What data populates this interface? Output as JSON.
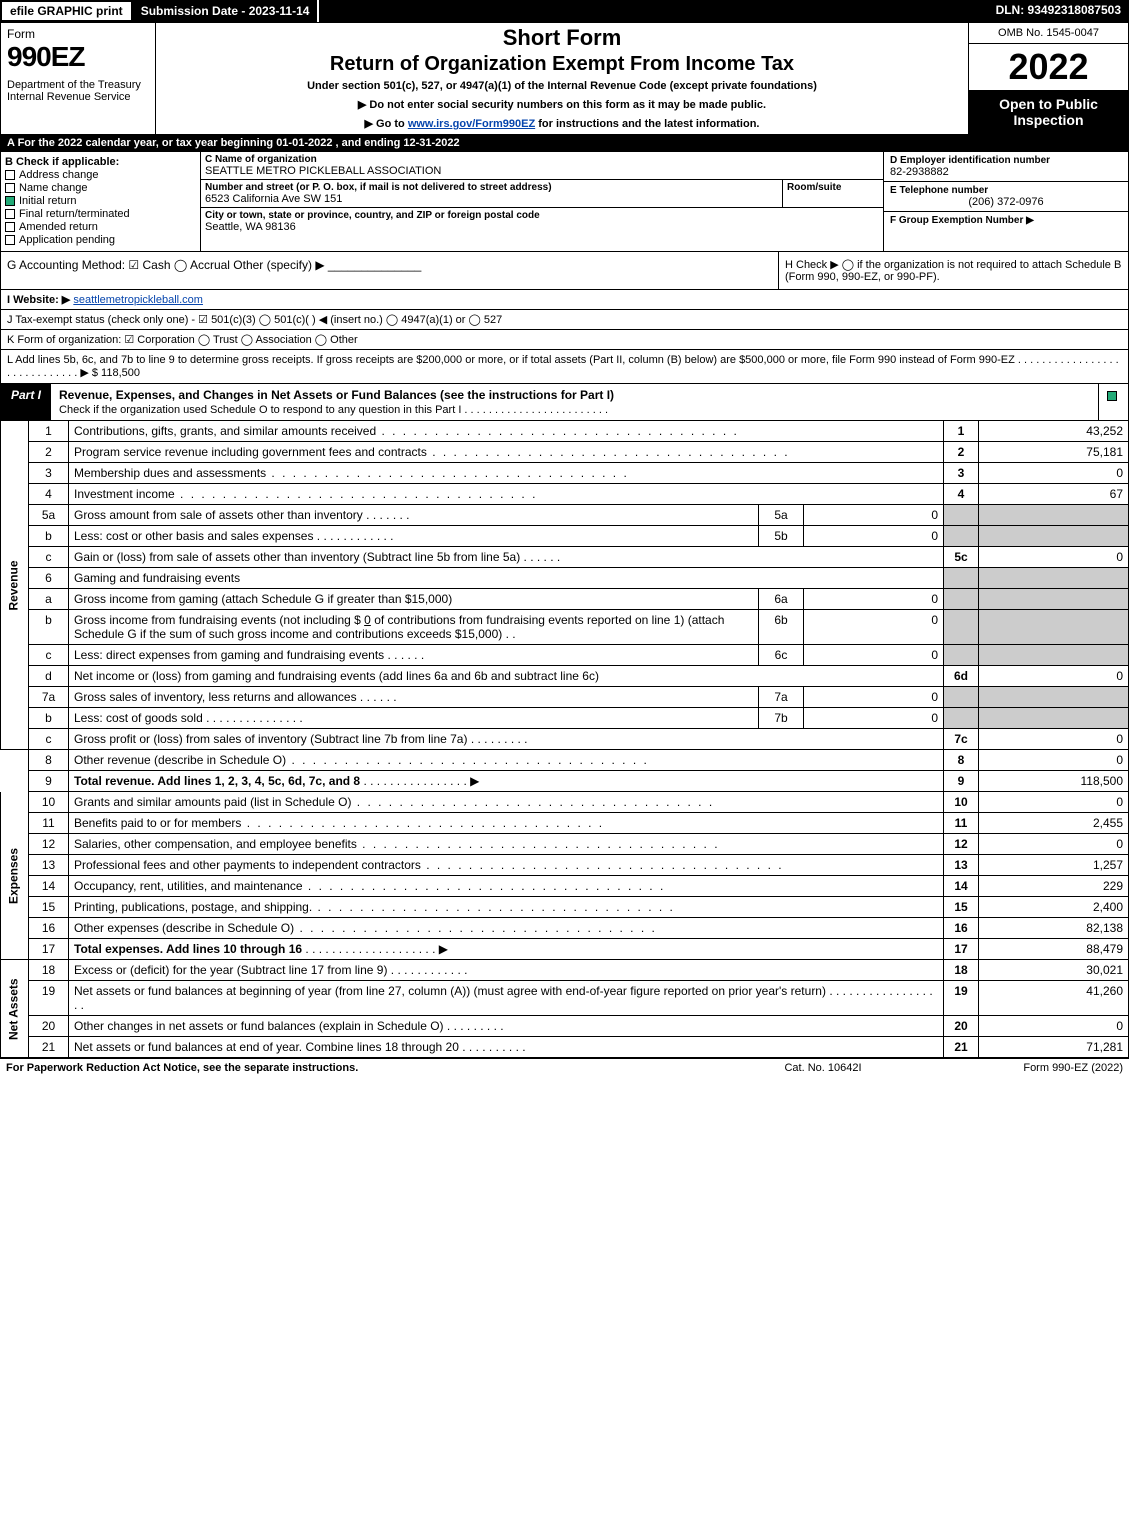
{
  "topbar": {
    "efile": "efile GRAPHIC print",
    "submission": "Submission Date - 2023-11-14",
    "dln": "DLN: 93492318087503"
  },
  "header": {
    "form_word": "Form",
    "form_number": "990EZ",
    "dept1": "Department of the Treasury",
    "dept2": "Internal Revenue Service",
    "title1": "Short Form",
    "title2": "Return of Organization Exempt From Income Tax",
    "subtitle": "Under section 501(c), 527, or 4947(a)(1) of the Internal Revenue Code (except private foundations)",
    "note1": "▶ Do not enter social security numbers on this form as it may be made public.",
    "note2_pre": "▶ Go to ",
    "note2_link": "www.irs.gov/Form990EZ",
    "note2_post": " for instructions and the latest information.",
    "omb": "OMB No. 1545-0047",
    "year": "2022",
    "open": "Open to Public Inspection"
  },
  "row_a": "A  For the 2022 calendar year, or tax year beginning 01-01-2022 , and ending 12-31-2022",
  "section_b": {
    "b_label": "B  Check if applicable:",
    "checks": [
      {
        "label": "Address change",
        "checked": false
      },
      {
        "label": "Name change",
        "checked": false
      },
      {
        "label": "Initial return",
        "checked": true
      },
      {
        "label": "Final return/terminated",
        "checked": false
      },
      {
        "label": "Amended return",
        "checked": false
      },
      {
        "label": "Application pending",
        "checked": false
      }
    ],
    "c_name_label": "C Name of organization",
    "c_name": "SEATTLE METRO PICKLEBALL ASSOCIATION",
    "c_street_label": "Number and street (or P. O. box, if mail is not delivered to street address)",
    "c_street": "6523 California Ave SW 151",
    "c_room_label": "Room/suite",
    "c_city_label": "City or town, state or province, country, and ZIP or foreign postal code",
    "c_city": "Seattle, WA  98136",
    "d_label": "D Employer identification number",
    "d_val": "82-2938882",
    "e_label": "E Telephone number",
    "e_val": "(206) 372-0976",
    "f_label": "F Group Exemption Number  ▶",
    "f_val": ""
  },
  "row_g": {
    "g_text": "G Accounting Method:   ☑ Cash  ◯ Accrual   Other (specify) ▶ ______________",
    "h_text": "H  Check ▶  ◯  if the organization is not required to attach Schedule B (Form 990, 990-EZ, or 990-PF)."
  },
  "row_i": {
    "label": "I Website: ▶",
    "link": "seattlemetropickleball.com"
  },
  "row_j": "J Tax-exempt status (check only one) - ☑ 501(c)(3) ◯ 501(c)( ) ◀ (insert no.) ◯ 4947(a)(1) or ◯ 527",
  "row_k": "K Form of organization:   ☑ Corporation   ◯ Trust   ◯ Association   ◯ Other",
  "row_l": {
    "text": "L Add lines 5b, 6c, and 7b to line 9 to determine gross receipts. If gross receipts are $200,000 or more, or if total assets (Part II, column (B) below) are $500,000 or more, file Form 990 instead of Form 990-EZ . . . . . . . . . . . . . . . . . . . . . . . . . . . . . ▶ $",
    "val": "118,500"
  },
  "part1": {
    "tag": "Part I",
    "title": "Revenue, Expenses, and Changes in Net Assets or Fund Balances (see the instructions for Part I)",
    "sub": "Check if the organization used Schedule O to respond to any question in this Part I . . . . . . . . . . . . . . . . . . . . . . . ."
  },
  "side": {
    "revenue": "Revenue",
    "expenses": "Expenses",
    "netassets": "Net Assets"
  },
  "lines": {
    "l1": {
      "n": "1",
      "d": "Contributions, gifts, grants, and similar amounts received",
      "r": "1",
      "v": "43,252"
    },
    "l2": {
      "n": "2",
      "d": "Program service revenue including government fees and contracts",
      "r": "2",
      "v": "75,181"
    },
    "l3": {
      "n": "3",
      "d": "Membership dues and assessments",
      "r": "3",
      "v": "0"
    },
    "l4": {
      "n": "4",
      "d": "Investment income",
      "r": "4",
      "v": "67"
    },
    "l5a": {
      "n": "5a",
      "d": "Gross amount from sale of assets other than inventory",
      "sn": "5a",
      "sv": "0"
    },
    "l5b": {
      "n": "b",
      "d": "Less: cost or other basis and sales expenses",
      "sn": "5b",
      "sv": "0"
    },
    "l5c": {
      "n": "c",
      "d": "Gain or (loss) from sale of assets other than inventory (Subtract line 5b from line 5a)",
      "r": "5c",
      "v": "0"
    },
    "l6": {
      "n": "6",
      "d": "Gaming and fundraising events"
    },
    "l6a": {
      "n": "a",
      "d": "Gross income from gaming (attach Schedule G if greater than $15,000)",
      "sn": "6a",
      "sv": "0"
    },
    "l6b": {
      "n": "b",
      "d1": "Gross income from fundraising events (not including $",
      "d1v": "0",
      "d2": " of contributions from fundraising events reported on line 1) (attach Schedule G if the sum of such gross income and contributions exceeds $15,000)",
      "sn": "6b",
      "sv": "0"
    },
    "l6c": {
      "n": "c",
      "d": "Less: direct expenses from gaming and fundraising events",
      "sn": "6c",
      "sv": "0"
    },
    "l6d": {
      "n": "d",
      "d": "Net income or (loss) from gaming and fundraising events (add lines 6a and 6b and subtract line 6c)",
      "r": "6d",
      "v": "0"
    },
    "l7a": {
      "n": "7a",
      "d": "Gross sales of inventory, less returns and allowances",
      "sn": "7a",
      "sv": "0"
    },
    "l7b": {
      "n": "b",
      "d": "Less: cost of goods sold",
      "sn": "7b",
      "sv": "0"
    },
    "l7c": {
      "n": "c",
      "d": "Gross profit or (loss) from sales of inventory (Subtract line 7b from line 7a)",
      "r": "7c",
      "v": "0"
    },
    "l8": {
      "n": "8",
      "d": "Other revenue (describe in Schedule O)",
      "r": "8",
      "v": "0"
    },
    "l9": {
      "n": "9",
      "d": "Total revenue. Add lines 1, 2, 3, 4, 5c, 6d, 7c, and 8",
      "r": "9",
      "v": "118,500",
      "arrow": "▶",
      "bold": true
    },
    "l10": {
      "n": "10",
      "d": "Grants and similar amounts paid (list in Schedule O)",
      "r": "10",
      "v": "0"
    },
    "l11": {
      "n": "11",
      "d": "Benefits paid to or for members",
      "r": "11",
      "v": "2,455"
    },
    "l12": {
      "n": "12",
      "d": "Salaries, other compensation, and employee benefits",
      "r": "12",
      "v": "0"
    },
    "l13": {
      "n": "13",
      "d": "Professional fees and other payments to independent contractors",
      "r": "13",
      "v": "1,257"
    },
    "l14": {
      "n": "14",
      "d": "Occupancy, rent, utilities, and maintenance",
      "r": "14",
      "v": "229"
    },
    "l15": {
      "n": "15",
      "d": "Printing, publications, postage, and shipping.",
      "r": "15",
      "v": "2,400"
    },
    "l16": {
      "n": "16",
      "d": "Other expenses (describe in Schedule O)",
      "r": "16",
      "v": "82,138"
    },
    "l17": {
      "n": "17",
      "d": "Total expenses. Add lines 10 through 16",
      "r": "17",
      "v": "88,479",
      "arrow": "▶",
      "bold": true
    },
    "l18": {
      "n": "18",
      "d": "Excess or (deficit) for the year (Subtract line 17 from line 9)",
      "r": "18",
      "v": "30,021"
    },
    "l19": {
      "n": "19",
      "d": "Net assets or fund balances at beginning of year (from line 27, column (A)) (must agree with end-of-year figure reported on prior year's return)",
      "r": "19",
      "v": "41,260"
    },
    "l20": {
      "n": "20",
      "d": "Other changes in net assets or fund balances (explain in Schedule O)",
      "r": "20",
      "v": "0"
    },
    "l21": {
      "n": "21",
      "d": "Net assets or fund balances at end of year. Combine lines 18 through 20",
      "r": "21",
      "v": "71,281"
    }
  },
  "footer": {
    "left": "For Paperwork Reduction Act Notice, see the separate instructions.",
    "mid": "Cat. No. 10642I",
    "right": "Form 990-EZ (2022)"
  }
}
